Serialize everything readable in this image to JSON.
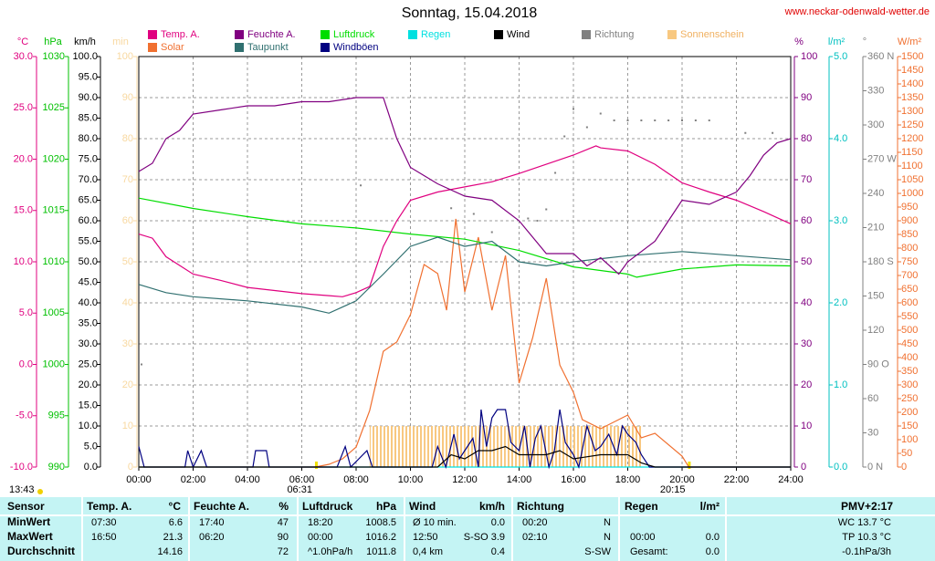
{
  "chart_data": {
    "type": "line",
    "title": "Sonntag, 15.04.2018",
    "source": "www.neckar-odenwald-wetter.de",
    "xlim": [
      0,
      24
    ],
    "xticks": [
      {
        "value": 0,
        "label": "00:00"
      },
      {
        "value": 2,
        "label": "02:00"
      },
      {
        "value": 4,
        "label": "04:00"
      },
      {
        "value": 6,
        "label": "06:00"
      },
      {
        "value": 8,
        "label": "08:00"
      },
      {
        "value": 10,
        "label": "10:00"
      },
      {
        "value": 12,
        "label": "12:00"
      },
      {
        "value": 14,
        "label": "14:00"
      },
      {
        "value": 16,
        "label": "16:00"
      },
      {
        "value": 18,
        "label": "18:00"
      },
      {
        "value": 20,
        "label": "20:00"
      },
      {
        "value": 22,
        "label": "22:00"
      },
      {
        "value": 24,
        "label": "24:00"
      }
    ],
    "grid": true,
    "annotations": [
      {
        "text": "13:43"
      },
      {
        "text": "06:31",
        "x": 6.52
      },
      {
        "text": "20:15",
        "x": 20.25
      }
    ],
    "axes": [
      {
        "unit": "°C",
        "color": "#e0007f",
        "side": "left",
        "ylim": [
          -10,
          30
        ],
        "yticks": [
          {
            "value": -10,
            "label": "-10.0"
          },
          {
            "value": -5,
            "label": "-5.0"
          },
          {
            "value": 0,
            "label": "0.0"
          },
          {
            "value": 5,
            "label": "5.0"
          },
          {
            "value": 10,
            "label": "10.0"
          },
          {
            "value": 15,
            "label": "15.0"
          },
          {
            "value": 20,
            "label": "20.0"
          },
          {
            "value": 25,
            "label": "25.0"
          },
          {
            "value": 30,
            "label": "30.0"
          }
        ]
      },
      {
        "unit": "hPa",
        "color": "#00c000",
        "side": "left",
        "ylim": [
          990,
          1030
        ],
        "yticks": [
          990,
          995,
          1000,
          1005,
          1010,
          1015,
          1020,
          1025,
          1030
        ]
      },
      {
        "unit": "km/h",
        "color": "#000000",
        "side": "left",
        "ylim": [
          0,
          100
        ],
        "yticks": [
          {
            "value": 0,
            "label": "0.0"
          },
          {
            "value": 5,
            "label": "5.0"
          },
          {
            "value": 10,
            "label": "10.0"
          },
          {
            "value": 15,
            "label": "15.0"
          },
          {
            "value": 20,
            "label": "20.0"
          },
          {
            "value": 25,
            "label": "25.0"
          },
          {
            "value": 30,
            "label": "30.0"
          },
          {
            "value": 35,
            "label": "35.0"
          },
          {
            "value": 40,
            "label": "40.0"
          },
          {
            "value": 45,
            "label": "45.0"
          },
          {
            "value": 50,
            "label": "50.0"
          },
          {
            "value": 55,
            "label": "55.0"
          },
          {
            "value": 60,
            "label": "60.0"
          },
          {
            "value": 65,
            "label": "65.0"
          },
          {
            "value": 70,
            "label": "70.0"
          },
          {
            "value": 75,
            "label": "75.0"
          },
          {
            "value": 80,
            "label": "80.0"
          },
          {
            "value": 85,
            "label": "85.0"
          },
          {
            "value": 90,
            "label": "90.0"
          },
          {
            "value": 95,
            "label": "95.0"
          },
          {
            "value": 100,
            "label": "100.0"
          }
        ]
      },
      {
        "unit": "min",
        "color": "#f8d8a0",
        "side": "left",
        "ylim": [
          0,
          100
        ],
        "yticks": [
          0,
          10,
          20,
          30,
          40,
          50,
          60,
          70,
          80,
          90,
          100
        ]
      },
      {
        "unit": "%",
        "color": "#800080",
        "side": "right",
        "ylim": [
          0,
          100
        ],
        "yticks": [
          0,
          10,
          20,
          30,
          40,
          50,
          60,
          70,
          80,
          90,
          100
        ]
      },
      {
        "unit": "l/m²",
        "color": "#00c0c0",
        "side": "right",
        "ylim": [
          0,
          5
        ],
        "yticks": [
          {
            "value": 0,
            "label": "0.0"
          },
          {
            "value": 1,
            "label": "1.0"
          },
          {
            "value": 2,
            "label": "2.0"
          },
          {
            "value": 3,
            "label": "3.0"
          },
          {
            "value": 4,
            "label": "4.0"
          },
          {
            "value": 5,
            "label": "5.0"
          }
        ]
      },
      {
        "unit": "°",
        "color": "#808080",
        "side": "right",
        "ylim": [
          0,
          360
        ],
        "yticks": [
          {
            "value": 0,
            "label": "0 N"
          },
          30,
          60,
          {
            "value": 90,
            "label": "90 O"
          },
          120,
          150,
          {
            "value": 180,
            "label": "180 S"
          },
          210,
          240,
          {
            "value": 270,
            "label": "270 W"
          },
          300,
          330,
          {
            "value": 360,
            "label": "360 N"
          }
        ]
      },
      {
        "unit": "W/m²",
        "color": "#f07030",
        "side": "right",
        "ylim": [
          0,
          1500
        ],
        "yticks": [
          0,
          50,
          100,
          150,
          200,
          250,
          300,
          350,
          400,
          450,
          500,
          550,
          600,
          650,
          700,
          750,
          800,
          850,
          900,
          950,
          1000,
          1050,
          1100,
          1150,
          1200,
          1250,
          1300,
          1350,
          1400,
          1450,
          1500
        ]
      }
    ],
    "series": [
      {
        "name": "Temp. A.",
        "color": "#e0007f",
        "axis": "°C",
        "style": "line",
        "x": [
          0,
          0.5,
          1,
          2,
          3,
          4,
          5,
          6,
          7,
          7.5,
          8,
          8.5,
          9,
          9.5,
          10,
          11,
          12,
          13,
          14,
          15,
          16,
          16.83,
          17,
          18,
          19,
          20,
          21,
          22,
          23,
          24
        ],
        "values": [
          12.7,
          12.3,
          10.5,
          8.8,
          8.2,
          7.5,
          7.2,
          6.9,
          6.7,
          6.6,
          7.0,
          7.6,
          11.5,
          14,
          16,
          16.8,
          17.3,
          17.8,
          18.6,
          19.5,
          20.4,
          21.3,
          21.1,
          20.8,
          19.5,
          17.7,
          16.8,
          16,
          14.9,
          13.7
        ]
      },
      {
        "name": "Feuchte A.",
        "color": "#800080",
        "axis": "%",
        "style": "line",
        "x": [
          0,
          0.5,
          1,
          1.5,
          2,
          3,
          4,
          5,
          6,
          7,
          8,
          9,
          9.5,
          10,
          10.5,
          11,
          12,
          13,
          14,
          14.5,
          15,
          16,
          16.5,
          17,
          17.67,
          18,
          19,
          19.5,
          20,
          21,
          22,
          22.5,
          23,
          23.5,
          24
        ],
        "values": [
          72,
          74,
          80,
          82,
          86,
          87,
          88,
          88,
          89,
          89,
          90,
          90,
          80,
          73,
          71,
          69,
          66,
          65,
          60,
          56,
          52,
          52,
          49,
          51,
          47,
          50,
          55,
          60,
          65,
          64,
          67,
          71,
          76,
          79,
          80
        ]
      },
      {
        "name": "Luftdruck",
        "color": "#00dd00",
        "axis": "hPa",
        "style": "line",
        "x": [
          0,
          2,
          4,
          6,
          8,
          10,
          12,
          14,
          16,
          18,
          18.33,
          20,
          22,
          24
        ],
        "values": [
          1016.2,
          1015.2,
          1014.4,
          1013.7,
          1013.3,
          1012.7,
          1012.2,
          1011.1,
          1009.5,
          1008.8,
          1008.5,
          1009.3,
          1009.7,
          1009.6
        ]
      },
      {
        "name": "Regen",
        "color": "#00e0e0",
        "axis": "l/m²",
        "style": "line",
        "x": [
          0,
          24
        ],
        "values": [
          0,
          0
        ]
      },
      {
        "name": "Wind",
        "color": "#000000",
        "axis": "km/h",
        "style": "line",
        "x": [
          0,
          11,
          11.5,
          12,
          12.5,
          13,
          13.5,
          14,
          15,
          15.5,
          16,
          17,
          18,
          18.5,
          19,
          24
        ],
        "values": [
          0,
          0,
          3,
          2,
          4,
          4,
          5,
          3,
          3,
          4,
          2,
          3,
          3,
          1,
          0,
          0
        ]
      },
      {
        "name": "Richtung",
        "color": "#808080",
        "axis": "°",
        "style": "dots",
        "x": [
          0.1,
          8.17,
          11.5,
          12.33,
          13,
          14.33,
          14.67,
          15,
          15.33,
          15.67,
          16,
          16.5,
          17,
          17.5,
          18,
          18.5,
          19,
          19.5,
          20,
          20.5,
          21,
          22.33,
          23.33
        ],
        "values": [
          90,
          247,
          227,
          222,
          206,
          218,
          216,
          226,
          258,
          290,
          314,
          298,
          310,
          304,
          304,
          304,
          304,
          304,
          304,
          304,
          304,
          293,
          293
        ]
      },
      {
        "name": "Sonnenschein",
        "color": "#f8c880",
        "axis": "min",
        "style": "bars",
        "x": [
          8.5,
          9,
          9.5,
          10,
          10.5,
          11,
          11.5,
          12,
          12.5,
          13,
          13.5,
          14,
          14.5,
          15,
          15.5,
          16,
          16.5,
          17,
          17.5,
          18
        ],
        "values": [
          10,
          10,
          10,
          10,
          10,
          10,
          10,
          10,
          10,
          10,
          10,
          10,
          10,
          10,
          10,
          10,
          10,
          10,
          10,
          10
        ]
      },
      {
        "name": "Solar",
        "color": "#f07030",
        "axis": "W/m²",
        "style": "line",
        "x": [
          0,
          6.5,
          7,
          7.5,
          8,
          8.5,
          9,
          9.5,
          10,
          10.5,
          11,
          11.33,
          11.67,
          12,
          12.5,
          13,
          13.5,
          14,
          14.5,
          15,
          15.5,
          16,
          16.33,
          17,
          18,
          18.5,
          19,
          20,
          20.25,
          24
        ],
        "values": [
          0,
          0,
          10,
          30,
          73,
          207,
          423,
          457,
          557,
          740,
          707,
          573,
          907,
          640,
          840,
          573,
          773,
          307,
          473,
          690,
          373,
          273,
          173,
          140,
          190,
          107,
          123,
          40,
          0,
          0
        ]
      },
      {
        "name": "Taupunkt",
        "color": "#307070",
        "axis": "°C",
        "style": "line",
        "x": [
          0,
          1,
          2,
          4,
          6,
          7,
          8,
          9,
          10,
          11,
          12,
          13,
          14,
          15,
          16,
          17,
          18,
          20,
          22,
          24
        ],
        "values": [
          7.8,
          7,
          6.6,
          6.2,
          5.6,
          5.0,
          6.2,
          8.8,
          11.5,
          12.4,
          11.5,
          12,
          10,
          9.6,
          10,
          10.3,
          10.6,
          11,
          10.6,
          10.2
        ]
      },
      {
        "name": "Windböen",
        "color": "#000080",
        "axis": "km/h",
        "style": "line",
        "x": [
          0,
          0.2,
          1.7,
          1.8,
          2,
          2.3,
          2.5,
          4.2,
          4.3,
          4.7,
          4.8,
          7.3,
          7.6,
          7.8,
          8.4,
          8.6,
          10.8,
          11,
          11.3,
          11.6,
          11.8,
          12,
          12.3,
          12.5,
          12.6,
          12.8,
          13,
          13.2,
          13.5,
          13.7,
          14,
          14.2,
          14.4,
          14.6,
          14.8,
          15.1,
          15.3,
          15.5,
          15.7,
          16,
          16.2,
          16.5,
          16.8,
          17,
          17.3,
          17.6,
          17.8,
          18,
          18.3,
          18.5,
          18.8,
          24
        ],
        "values": [
          5,
          0,
          0,
          4,
          0,
          4,
          0,
          0,
          4,
          4,
          0,
          0,
          5,
          0,
          4,
          0,
          0,
          5,
          0,
          8,
          2,
          4,
          7,
          0,
          14,
          5,
          12,
          14,
          14,
          6,
          4,
          10,
          0,
          7,
          10,
          0,
          4,
          14,
          6,
          3,
          0,
          10,
          4,
          5,
          8,
          3,
          10,
          8,
          6,
          3,
          0,
          0
        ]
      }
    ]
  },
  "table": {
    "header": [
      "Sensor",
      "Temp. A.",
      "°C",
      "Feuchte A.",
      "%",
      "Luftdruck",
      "hPa",
      "Wind",
      "km/h",
      "Richtung",
      "Regen",
      "l/m²",
      "PMV+2:17"
    ],
    "rows": [
      [
        "MinWert",
        "07:30",
        "6.6",
        "17:40",
        "47",
        "18:20",
        "1008.5",
        "Ø 10 min.",
        "0.0",
        "00:20",
        "N",
        null,
        null,
        "WC 13.7 °C"
      ],
      [
        "MaxWert",
        "16:50",
        "21.3",
        "06:20",
        "90",
        "00:00",
        "1016.2",
        "12:50",
        "S-SO 3.9",
        "02:10",
        "N",
        "00:00",
        "0.0",
        "TP 10.3 °C"
      ],
      [
        "Durchschnitt",
        null,
        "14.16",
        null,
        "72",
        "^1.0hPa/h",
        "1011.8",
        "0,4 km",
        "0.4",
        null,
        "S-SW",
        "Gesamt:",
        "0.0",
        "-0.1hPa/3h"
      ]
    ]
  }
}
